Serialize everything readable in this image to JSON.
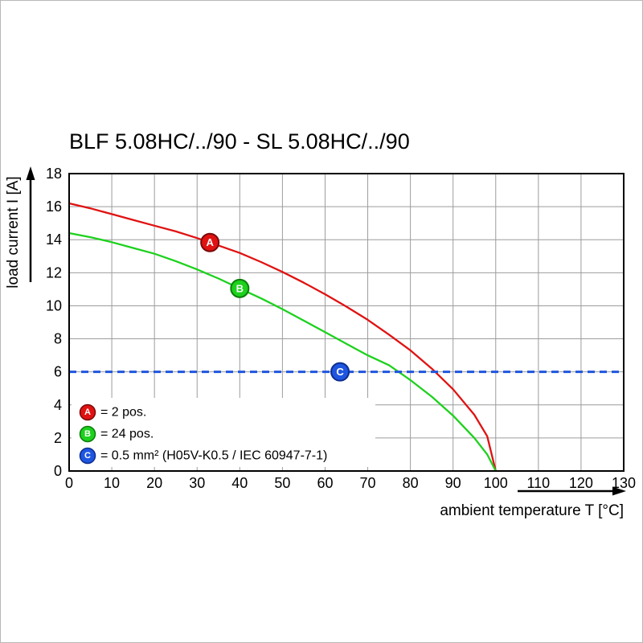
{
  "frame": {
    "border_color": "#b8b8b8",
    "background": "#ffffff"
  },
  "chart_data": {
    "type": "line",
    "title": "BLF 5.08HC/../90 - SL 5.08HC/../90",
    "xlabel": "ambient temperature T [°C]",
    "ylabel": "load current I [A]",
    "xlim": [
      0,
      130
    ],
    "ylim": [
      0,
      18
    ],
    "x_ticks": [
      0,
      10,
      20,
      30,
      40,
      50,
      60,
      70,
      80,
      90,
      100,
      110,
      120,
      130
    ],
    "y_ticks": [
      0,
      2,
      4,
      6,
      8,
      10,
      12,
      14,
      16,
      18
    ],
    "grid": true,
    "grid_color": "#9c9c9c",
    "legend_position": "lower-left",
    "series": [
      {
        "name": "A",
        "legend": "= 2 pos.",
        "color": "#e01212",
        "edge_color": "#7a0a0a",
        "marker_x": 33,
        "x": [
          0,
          5,
          10,
          15,
          20,
          25,
          30,
          35,
          40,
          45,
          50,
          55,
          60,
          65,
          70,
          75,
          80,
          85,
          90,
          95,
          98,
          100
        ],
        "y": [
          16.2,
          15.9,
          15.55,
          15.2,
          14.85,
          14.5,
          14.1,
          13.65,
          13.2,
          12.65,
          12.05,
          11.4,
          10.7,
          9.95,
          9.15,
          8.25,
          7.3,
          6.2,
          4.95,
          3.4,
          2.1,
          0
        ]
      },
      {
        "name": "B",
        "legend": "= 24 pos.",
        "color": "#1dd11d",
        "edge_color": "#0b7d0b",
        "marker_x": 40,
        "x": [
          0,
          5,
          10,
          15,
          20,
          25,
          30,
          35,
          40,
          45,
          50,
          55,
          60,
          65,
          70,
          75,
          80,
          85,
          90,
          95,
          98,
          100
        ],
        "y": [
          14.4,
          14.15,
          13.85,
          13.5,
          13.15,
          12.7,
          12.2,
          11.65,
          11.05,
          10.45,
          9.8,
          9.1,
          8.4,
          7.7,
          7.0,
          6.4,
          5.5,
          4.5,
          3.35,
          2.0,
          1.0,
          0
        ]
      },
      {
        "name": "C",
        "legend": "= 0.5 mm² (H05V-K0.5 / IEC 60947-7-1)",
        "color": "#1e56e0",
        "edge_color": "#0c2d8f",
        "dashed": true,
        "const_y": 6,
        "marker_x": 63.5
      }
    ]
  }
}
